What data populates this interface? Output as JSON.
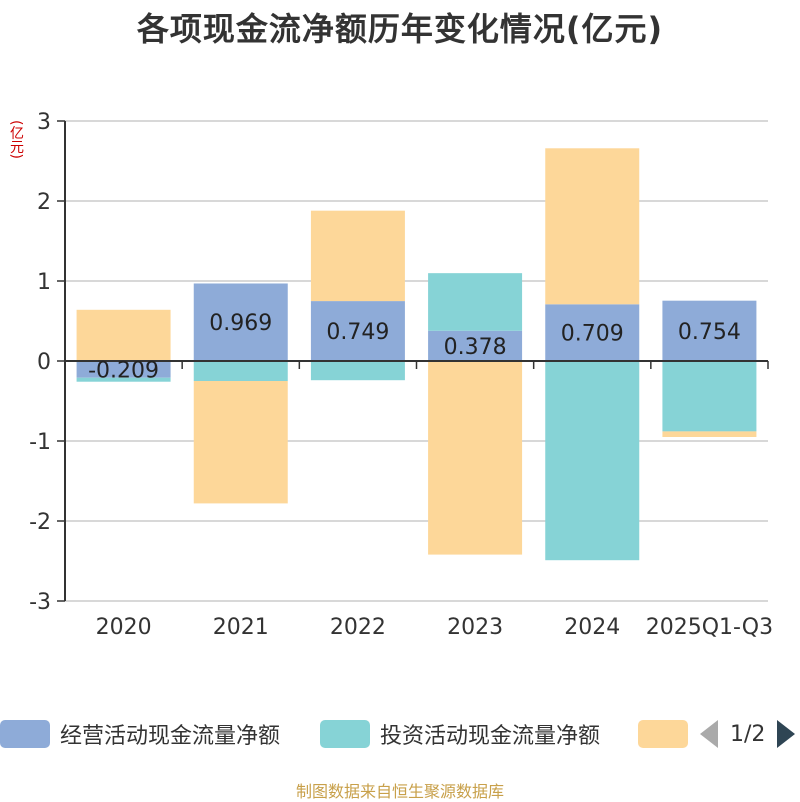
{
  "title": "各项现金流净额历年变化情况(亿元)",
  "source": "制图数据来自恒生聚源数据库",
  "legend": {
    "items": [
      {
        "label": "经营活动现金流量净额",
        "color": "#8eabd8"
      },
      {
        "label": "投资活动现金流量净额",
        "color": "#86d3d6"
      },
      {
        "label": "",
        "color": "#fdd799"
      }
    ],
    "pager": "1/2"
  },
  "chart_data": {
    "type": "bar",
    "stacked": true,
    "categories": [
      "2020",
      "2021",
      "2022",
      "2023",
      "2024",
      "2025Q1-Q3"
    ],
    "ylabel": "(亿元)",
    "ylim": [
      -3,
      3
    ],
    "yticks": [
      3,
      2,
      1,
      0,
      -1,
      -2,
      -3
    ],
    "grid": true,
    "legend_position": "bottom",
    "series": [
      {
        "name": "经营活动现金流量净额",
        "color": "#8eabd8",
        "values": [
          -0.209,
          0.969,
          0.749,
          0.378,
          0.709,
          0.754
        ],
        "labels": [
          "-0.209",
          "0.969",
          "0.749",
          "0.378",
          "0.709",
          "0.754"
        ]
      },
      {
        "name": "投资活动现金流量净额",
        "color": "#86d3d6",
        "values": [
          -0.05,
          -0.25,
          -0.24,
          0.72,
          -2.49,
          -0.88
        ]
      },
      {
        "color": "#fdd799",
        "values": [
          0.64,
          -1.53,
          1.13,
          -2.42,
          1.95,
          -0.07
        ]
      }
    ]
  }
}
